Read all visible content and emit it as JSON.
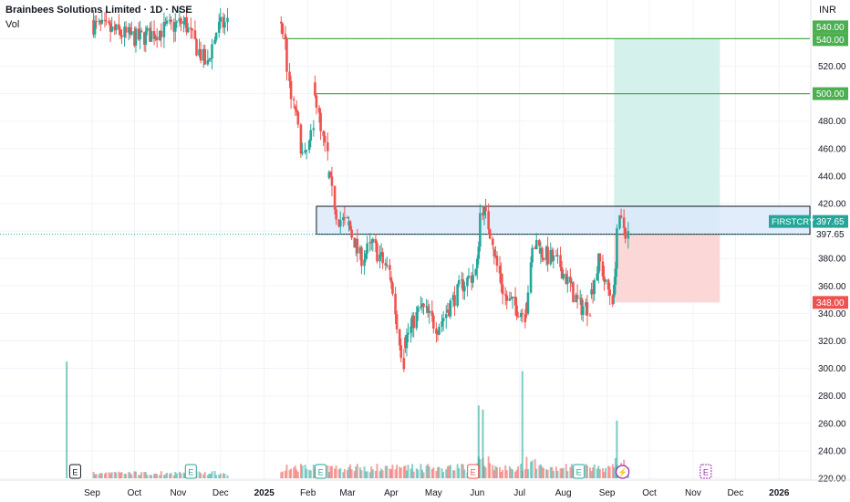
{
  "header": {
    "title": "Brainbees Solutions Limited · 1D · NSE",
    "indicator": "Vol",
    "currency": "INR"
  },
  "colors": {
    "up": "#26a69a",
    "down": "#ef5350",
    "level_green": "#4caf50",
    "zone_fill": "#dbe9fb",
    "target_fill": "#d4f1ec",
    "stop_fill": "#fbd7d8",
    "grid": "#f0f3fa",
    "axis_text": "#131722"
  },
  "chart_data": {
    "type": "candlestick",
    "symbol": "FIRSTCRY",
    "last_price": 397.65,
    "y_axis": {
      "ticks": [
        220,
        240,
        260,
        280,
        300,
        320,
        340,
        360,
        380,
        400,
        420,
        440,
        460,
        480,
        500,
        520,
        540
      ],
      "labels": [
        "220.00",
        "240.00",
        "260.00",
        "280.00",
        "300.00",
        "320.00",
        "340.00",
        "360.00",
        "380.00",
        "400.00",
        "420.00",
        "440.00",
        "460.00",
        "480.00",
        "500.00",
        "520.00",
        "540.00"
      ],
      "range": [
        214,
        552
      ]
    },
    "x_axis": {
      "labels": [
        "Sep",
        "Oct",
        "Nov",
        "Dec",
        "2025",
        "Feb",
        "Mar",
        "Apr",
        "May",
        "Jun",
        "Jul",
        "Aug",
        "Sep",
        "Oct",
        "Nov",
        "Dec",
        "2026"
      ],
      "dates": [
        "2024-09-01",
        "2024-10-01",
        "2024-11-01",
        "2024-12-01",
        "2025-01-01",
        "2025-02-01",
        "2025-03-01",
        "2025-04-01",
        "2025-05-01",
        "2025-06-01",
        "2025-07-01",
        "2025-08-01",
        "2025-09-01",
        "2025-10-01",
        "2025-11-01",
        "2025-12-01",
        "2026-01-01"
      ],
      "bold": [
        "2025",
        "2026"
      ]
    },
    "levels": [
      {
        "price": 540.0,
        "label": "540.00",
        "start": "2025-01-14",
        "color": "#4caf50"
      },
      {
        "price": 500.0,
        "label": "500.00",
        "start": "2025-02-06",
        "color": "#4caf50"
      }
    ],
    "zone": {
      "top": 418,
      "bottom": 397.65,
      "start": "2025-02-07"
    },
    "position": {
      "start": "2025-09-06",
      "end": "2025-11-20",
      "entry": 397.65,
      "target": 540.0,
      "stop": 348.0,
      "stop_label": "348.00",
      "target_label": "540.00"
    },
    "price_tag": {
      "symbol": "FIRSTCRY",
      "value": "397.65",
      "line_label": "397.65"
    },
    "earnings_markers": [
      {
        "date": "2024-08-20",
        "label": "E",
        "kind": "past"
      },
      {
        "date": "2024-11-10",
        "label": "E",
        "kind": "green"
      },
      {
        "date": "2025-02-10",
        "label": "E",
        "kind": "green"
      },
      {
        "date": "2025-05-29",
        "label": "E",
        "kind": "red"
      },
      {
        "date": "2025-08-12",
        "label": "E",
        "kind": "green"
      },
      {
        "date": "2025-11-10",
        "label": "E",
        "kind": "future"
      }
    ],
    "split_marker": {
      "date": "2025-09-12"
    },
    "segments": [
      {
        "from": "2024-09-02",
        "to": "2024-11-05",
        "anchors": [
          [
            0,
            550
          ],
          [
            0.5,
            540
          ],
          [
            1,
            552
          ]
        ],
        "vol": "low",
        "vol_spike": [
          [
            "2024-08-14",
            305
          ]
        ]
      },
      {
        "from": "2024-11-06",
        "to": "2024-11-22",
        "anchors": [
          [
            0,
            552
          ],
          [
            0.5,
            535
          ],
          [
            1,
            520
          ]
        ],
        "vol": "low"
      },
      {
        "from": "2024-11-23",
        "to": "2024-12-06",
        "anchors": [
          [
            0,
            525
          ],
          [
            0.5,
            548
          ],
          [
            1,
            552
          ]
        ],
        "vol": "low"
      },
      {
        "from": "2025-01-13",
        "to": "2025-01-22",
        "anchors": [
          [
            0,
            552
          ],
          [
            0.3,
            540
          ],
          [
            0.7,
            500
          ],
          [
            1,
            490
          ]
        ],
        "vol": "mid"
      },
      {
        "from": "2025-01-23",
        "to": "2025-02-05",
        "anchors": [
          [
            0,
            490
          ],
          [
            0.5,
            450
          ],
          [
            1,
            472
          ]
        ],
        "vol": "mid"
      },
      {
        "from": "2025-02-06",
        "to": "2025-02-15",
        "anchors": [
          [
            0,
            505
          ],
          [
            0.5,
            470
          ],
          [
            1,
            455
          ]
        ],
        "vol": "mid"
      },
      {
        "from": "2025-02-16",
        "to": "2025-03-01",
        "anchors": [
          [
            0,
            440
          ],
          [
            0.5,
            410
          ],
          [
            1,
            405
          ]
        ],
        "vol": "mid"
      },
      {
        "from": "2025-03-02",
        "to": "2025-03-31",
        "anchors": [
          [
            0,
            405
          ],
          [
            0.3,
            380
          ],
          [
            0.6,
            390
          ],
          [
            1,
            370
          ]
        ],
        "vol": "mid"
      },
      {
        "from": "2025-04-01",
        "to": "2025-04-10",
        "anchors": [
          [
            0,
            365
          ],
          [
            0.5,
            330
          ],
          [
            1,
            305
          ]
        ],
        "vol": "mid"
      },
      {
        "from": "2025-04-11",
        "to": "2025-05-10",
        "anchors": [
          [
            0,
            320
          ],
          [
            0.4,
            345
          ],
          [
            0.8,
            330
          ],
          [
            1,
            340
          ]
        ],
        "vol": "mid"
      },
      {
        "from": "2025-05-11",
        "to": "2025-05-31",
        "anchors": [
          [
            0,
            342
          ],
          [
            0.5,
            360
          ],
          [
            1,
            370
          ]
        ],
        "vol": "mid"
      },
      {
        "from": "2025-06-01",
        "to": "2025-06-12",
        "anchors": [
          [
            0,
            375
          ],
          [
            0.3,
            420
          ],
          [
            0.6,
            410
          ],
          [
            1,
            395
          ]
        ],
        "vol": "high",
        "vol_spike": [
          [
            "2025-06-02",
            273
          ],
          [
            "2025-06-05",
            270
          ]
        ]
      },
      {
        "from": "2025-06-13",
        "to": "2025-07-05",
        "anchors": [
          [
            0,
            385
          ],
          [
            0.4,
            350
          ],
          [
            1,
            340
          ]
        ],
        "vol": "mid"
      },
      {
        "from": "2025-07-06",
        "to": "2025-07-15",
        "anchors": [
          [
            0,
            345
          ],
          [
            0.5,
            385
          ],
          [
            1,
            395
          ]
        ],
        "vol": "high",
        "vol_spike": [
          [
            "2025-07-03",
            298
          ]
        ]
      },
      {
        "from": "2025-07-16",
        "to": "2025-08-20",
        "anchors": [
          [
            0,
            385
          ],
          [
            0.4,
            375
          ],
          [
            0.8,
            345
          ],
          [
            1,
            345
          ]
        ],
        "vol": "mid"
      },
      {
        "from": "2025-08-21",
        "to": "2025-09-05",
        "anchors": [
          [
            0,
            355
          ],
          [
            0.4,
            380
          ],
          [
            0.7,
            360
          ],
          [
            1,
            352
          ]
        ],
        "vol": "mid"
      },
      {
        "from": "2025-09-06",
        "to": "2025-09-16",
        "anchors": [
          [
            0,
            355
          ],
          [
            0.3,
            405
          ],
          [
            0.6,
            405
          ],
          [
            1,
            397.65
          ]
        ],
        "vol": "high",
        "vol_spike": [
          [
            "2025-09-08",
            262
          ]
        ]
      }
    ]
  }
}
